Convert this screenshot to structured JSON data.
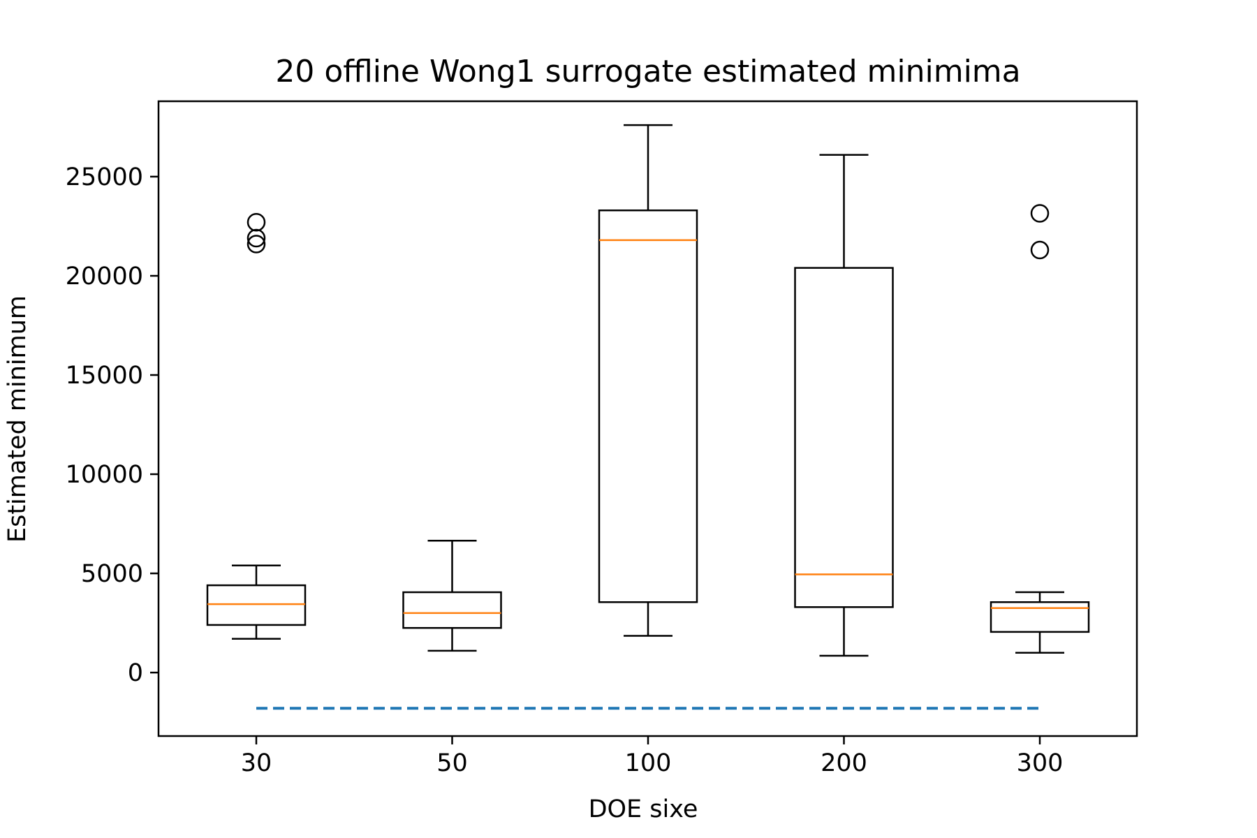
{
  "chart_data": {
    "type": "box",
    "title": "20 offline Wong1 surrogate estimated minimima",
    "xlabel": "DOE sixe",
    "ylabel": "Estimated minimum",
    "categories": [
      "30",
      "50",
      "100",
      "200",
      "300"
    ],
    "ylim": [
      -3200,
      28800
    ],
    "yticks": [
      0,
      5000,
      10000,
      15000,
      20000,
      25000
    ],
    "ytick_labels": [
      "0",
      "5000",
      "10000",
      "15000",
      "20000",
      "25000"
    ],
    "grid": false,
    "boxes": [
      {
        "category": "30",
        "whisker_low": 1700,
        "q1": 2400,
        "median": 3450,
        "q3": 4400,
        "whisker_high": 5400,
        "outliers": [
          21600,
          21900,
          22700
        ]
      },
      {
        "category": "50",
        "whisker_low": 1100,
        "q1": 2250,
        "median": 3000,
        "q3": 4050,
        "whisker_high": 6650,
        "outliers": []
      },
      {
        "category": "100",
        "whisker_low": 1850,
        "q1": 3550,
        "median": 21800,
        "q3": 23300,
        "whisker_high": 27600,
        "outliers": []
      },
      {
        "category": "200",
        "whisker_low": 850,
        "q1": 3300,
        "median": 4950,
        "q3": 20400,
        "whisker_high": 26100,
        "outliers": []
      },
      {
        "category": "300",
        "whisker_low": 1000,
        "q1": 2050,
        "median": 3250,
        "q3": 3550,
        "whisker_high": 4050,
        "outliers": [
          21300,
          23150
        ]
      }
    ],
    "reference_line": {
      "y": -1800,
      "x_from": "30",
      "x_to": "300",
      "style": "dashed",
      "color": "#1f77b4"
    },
    "colors": {
      "box": "#000000",
      "median": "#ff7f0e",
      "reference": "#1f77b4"
    }
  }
}
